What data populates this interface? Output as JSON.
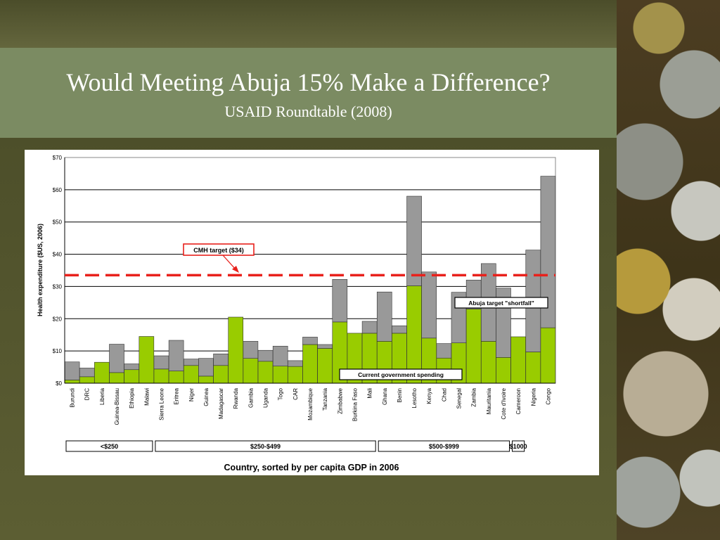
{
  "slide": {
    "title": "Would Meeting Abuja 15% Make a Difference?",
    "subtitle": "USAID Roundtable (2008)"
  },
  "chart_data": {
    "type": "bar",
    "stacked": true,
    "ylabel": "Health expenditure ($US, 2006)",
    "xlabel": "Country, sorted by per capita GDP in 2006",
    "ylim": [
      0,
      70
    ],
    "yticks": [
      "$0",
      "$10",
      "$20",
      "$30",
      "$40",
      "$50",
      "$60",
      "$70"
    ],
    "grid": true,
    "categories": [
      "Burundi",
      "DRC",
      "Liberia",
      "Guinea-Bissau",
      "Ethiopia",
      "Malawi",
      "Sierra Leone",
      "Eritrea",
      "Niger",
      "Guinea",
      "Madagascar",
      "Rwanda",
      "Gambia",
      "Uganda",
      "Togo",
      "CAR",
      "Mozambique",
      "Tanzania",
      "Zimbabwe",
      "Burkina Faso",
      "Mali",
      "Ghana",
      "Benin",
      "Lesotho",
      "Kenya",
      "Chad",
      "Senegal",
      "Zambia",
      "Mauritania",
      "Cote d'Ivoire",
      "Cameroon",
      "Nigeria",
      "Congo"
    ],
    "series": [
      {
        "name": "Current government spending",
        "color": "#99cc00",
        "values": [
          1,
          2,
          6.5,
          3.3,
          4.2,
          14.5,
          4.4,
          3.8,
          5.5,
          2.2,
          5.5,
          20.5,
          7.7,
          6.8,
          5.3,
          5.2,
          12,
          10.8,
          19,
          15.5,
          15.5,
          13,
          15.5,
          30.2,
          14,
          7.8,
          12.5,
          23,
          13,
          8,
          14.4,
          9.7,
          17.2
        ]
      },
      {
        "name": "Abuja target \"shortfall\"",
        "color": "#999999",
        "values": [
          5.6,
          2.7,
          0,
          8.8,
          1.8,
          0,
          4.1,
          9.5,
          2,
          5.5,
          3.6,
          0,
          5.3,
          3.4,
          6.2,
          1.8,
          2.3,
          1.2,
          13.2,
          0,
          3.7,
          15.3,
          2.3,
          27.8,
          20.5,
          4.5,
          15.7,
          9,
          24.1,
          21.5,
          0,
          31.6,
          47
        ]
      }
    ],
    "target_line": {
      "label": "CMH target ($34)",
      "value": 33.5,
      "color": "#e8211c"
    },
    "annotations": {
      "cmh": "CMH target ($34)",
      "shortfall": "Abuja target \"shortfall\"",
      "current": "Current government spending"
    },
    "gdp_groups": [
      {
        "label": "<$250",
        "from": 0,
        "to": 5
      },
      {
        "label": "$250-$499",
        "from": 6,
        "to": 20
      },
      {
        "label": "$500-$999",
        "from": 21,
        "to": 29
      },
      {
        "label": "$1000",
        "from": 30,
        "to": 30
      }
    ]
  }
}
